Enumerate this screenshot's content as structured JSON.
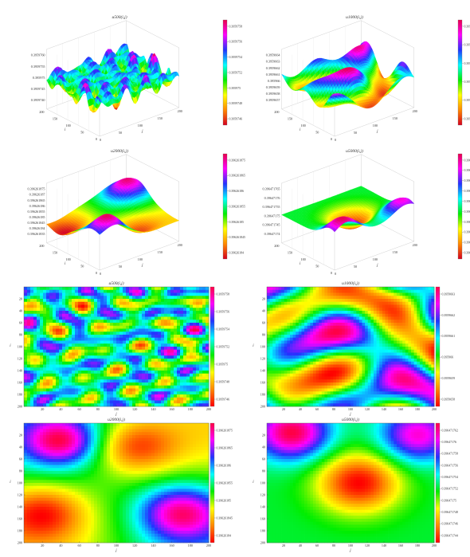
{
  "panel_titles": [
    "u500(i,j)",
    "u1000(i,j)",
    "u2000(i,j)",
    "u5000(i,j)",
    "u500(i,j)",
    "u1000(i,j)",
    "u2000(i,j)",
    "u5000(i,j)"
  ],
  "axis_letters": {
    "i": "i",
    "j": "j"
  },
  "chart_data": [
    {
      "type": "surface",
      "title": "u500(i,j)",
      "xlabel": "j",
      "ylabel": "i",
      "x_ticks": [
        "0",
        "50",
        "100",
        "150",
        "200"
      ],
      "y_ticks": [
        "0",
        "50",
        "100",
        "150",
        "200"
      ],
      "z_ticks": [
        "0.3959755",
        "0.395975",
        "0.3959745",
        "0.3959740"
      ],
      "z_ticks_top": "0.3959760",
      "colorbar_ticks": [
        "0.3959758",
        "0.3959756",
        "0.3959754",
        "0.3959752",
        "0.395975",
        "0.3959748",
        "0.3959746"
      ],
      "colormap": [
        "#d4001f",
        "#ff8800",
        "#ffff00",
        "#00ee00",
        "#00ffff",
        "#2233ff",
        "#ff00ff",
        "#e8004a"
      ],
      "frequency": "high"
    },
    {
      "type": "surface",
      "title": "u1000(i,j)",
      "xlabel": "j",
      "ylabel": "i",
      "x_ticks": [
        "0",
        "50",
        "100",
        "150",
        "200"
      ],
      "y_ticks": [
        "0",
        "50",
        "100",
        "150",
        "200"
      ],
      "z_ticks": [
        "0.3959664",
        "0.3959663",
        "0.3959662",
        "0.3959661",
        "0.395966",
        "0.3959659",
        "0.3959658",
        "0.3959657"
      ],
      "colorbar_ticks": [
        "0.3959663",
        "0.3959662",
        "0.3959661",
        "0.395966",
        "0.3959659",
        "0.3959658"
      ],
      "colormap": [
        "#d4001f",
        "#ff8800",
        "#ffff00",
        "#00ee00",
        "#00ffff",
        "#2233ff",
        "#ff00ff",
        "#e8004a"
      ],
      "frequency": "medium"
    },
    {
      "type": "surface",
      "title": "u2000(i,j)",
      "xlabel": "j",
      "ylabel": "i",
      "x_ticks": [
        "0",
        "50",
        "100",
        "150",
        "200"
      ],
      "y_ticks": [
        "0",
        "50",
        "100",
        "150",
        "200"
      ],
      "z_ticks": [
        "0.396261875",
        "0.39626187",
        "0.396261865",
        "0.39626186",
        "0.396261855",
        "0.39626185",
        "0.396261845",
        "0.39626184",
        "0.396261835"
      ],
      "colorbar_ticks": [
        "0.396261875",
        "0.396261865",
        "0.39626186",
        "0.396261855",
        "0.39626185",
        "0.396261845",
        "0.39626184"
      ],
      "colormap": [
        "#d4001f",
        "#ff8800",
        "#ffff00",
        "#00ee00",
        "#00ffff",
        "#2233ff",
        "#ff00ff",
        "#e8004a"
      ],
      "frequency": "low"
    },
    {
      "type": "surface",
      "title": "u5000(i,j)",
      "xlabel": "j",
      "ylabel": "i",
      "x_ticks": [
        "0",
        "50",
        "100",
        "150",
        "200"
      ],
      "y_ticks": [
        "0",
        "50",
        "100",
        "150",
        "200"
      ],
      "z_ticks": [
        "0.39647176",
        "0.396471755",
        "0.39647175",
        "0.396471745",
        "0.39647174"
      ],
      "z_ticks_top": "0.396471765",
      "colorbar_ticks": [
        "0.396471762",
        "0.39647176",
        "0.396471758",
        "0.396471756",
        "0.396471754",
        "0.396471752",
        "0.39647175",
        "0.396471748",
        "0.396471746",
        "0.396471744"
      ],
      "colormap": [
        "#d4001f",
        "#ff8800",
        "#ffff00",
        "#00ee00",
        "#00ffff",
        "#2233ff",
        "#ff00ff",
        "#e8004a"
      ],
      "frequency": "very-low"
    },
    {
      "type": "heatmap",
      "title": "u500(i,j)",
      "xlabel": "j",
      "ylabel": "i",
      "x_ticks": [
        "20",
        "40",
        "60",
        "80",
        "100",
        "120",
        "140",
        "160",
        "180",
        "200"
      ],
      "y_ticks": [
        "20",
        "40",
        "60",
        "80",
        "100",
        "120",
        "140",
        "160",
        "180",
        "200"
      ],
      "colorbar_ticks": [
        "0.3959758",
        "0.3959756",
        "0.3959754",
        "0.3959752",
        "0.395975",
        "0.3959748",
        "0.3959746"
      ],
      "colormap": [
        "#ff0000",
        "#ff8800",
        "#ffff00",
        "#00ee00",
        "#00ffff",
        "#2233ff",
        "#ff00ff",
        "#ff0044"
      ]
    },
    {
      "type": "heatmap",
      "title": "u1000(i,j)",
      "xlabel": "j",
      "ylabel": "i",
      "x_ticks": [
        "20",
        "40",
        "60",
        "80",
        "100",
        "120",
        "140",
        "160",
        "180",
        "200"
      ],
      "y_ticks": [
        "20",
        "40",
        "60",
        "80",
        "100",
        "120",
        "140",
        "160",
        "180",
        "200"
      ],
      "colorbar_ticks": [
        "0.3959663",
        "0.3959662",
        "0.3959661",
        "0.395966",
        "0.3959659",
        "0.3959658"
      ],
      "colormap": [
        "#ff0000",
        "#ff8800",
        "#ffff00",
        "#00ee00",
        "#00ffff",
        "#2233ff",
        "#ff00ff",
        "#ff0044"
      ]
    },
    {
      "type": "heatmap",
      "title": "u2000(i,j)",
      "xlabel": "j",
      "ylabel": "i",
      "x_ticks": [
        "20",
        "40",
        "60",
        "80",
        "100",
        "120",
        "140",
        "160",
        "180",
        "200"
      ],
      "y_ticks": [
        "20",
        "40",
        "60",
        "80",
        "100",
        "120",
        "140",
        "160",
        "180",
        "200"
      ],
      "colorbar_ticks": [
        "0.396261875",
        "0.396261865",
        "0.39626186",
        "0.396261855",
        "0.39626185",
        "0.396261845",
        "0.39626184"
      ],
      "colormap": [
        "#ff0000",
        "#ff8800",
        "#ffff00",
        "#00ee00",
        "#00ffff",
        "#2233ff",
        "#ff00ff",
        "#ff0044"
      ]
    },
    {
      "type": "heatmap",
      "title": "u5000(i,j)",
      "xlabel": "j",
      "ylabel": "i",
      "x_ticks": [
        "20",
        "40",
        "60",
        "80",
        "100",
        "120",
        "140",
        "160",
        "180",
        "200"
      ],
      "y_ticks": [
        "20",
        "40",
        "60",
        "80",
        "100",
        "120",
        "140",
        "160",
        "180",
        "200"
      ],
      "colorbar_ticks": [
        "0.396471762",
        "0.39647176",
        "0.396471758",
        "0.396471756",
        "0.396471754",
        "0.396471752",
        "0.39647175",
        "0.396471748",
        "0.396471746",
        "0.396471744"
      ],
      "colormap": [
        "#ff0000",
        "#ff8800",
        "#ffff00",
        "#00ee00",
        "#00ffff",
        "#2233ff",
        "#ff00ff",
        "#ff0044"
      ]
    }
  ]
}
